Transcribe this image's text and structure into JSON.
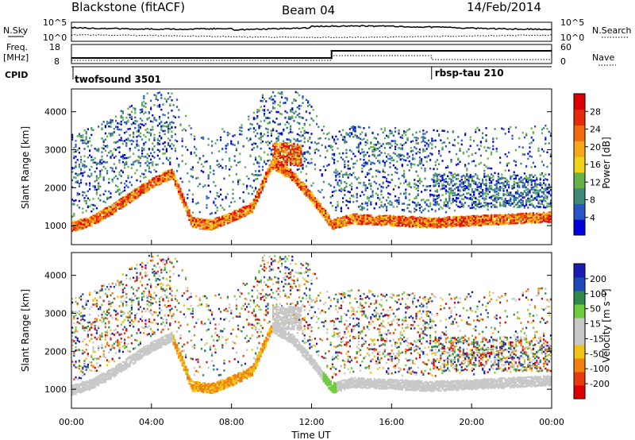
{
  "header": {
    "station": "Blackstone (fitACF)",
    "beam": "Beam 04",
    "date": "14/Feb/2014"
  },
  "strip_labels": {
    "nsky": "N.Sky",
    "nsearch": "N.Search",
    "freq_line1": "Freq.",
    "freq_line2": "[MHz]",
    "nave": "Nave",
    "cpid": "CPID"
  },
  "nsky_ticks": [
    "10^5",
    "10^0"
  ],
  "nsearch_ticks": [
    "10^5",
    "10^0"
  ],
  "freq_ticks": [
    "18",
    "8"
  ],
  "nave_ticks": [
    "60",
    "0"
  ],
  "cpid_segments": [
    {
      "label": "twofsound 3501",
      "start_hour": 0,
      "end_hour": 18
    },
    {
      "label": "rbsp-tau 210",
      "start_hour": 18,
      "end_hour": 24
    }
  ],
  "colors": {
    "power_scale": [
      "#0000dd",
      "#2a55c8",
      "#3f8a78",
      "#66b24a",
      "#f2d21c",
      "#f6a81a",
      "#f06a10",
      "#e62a0c",
      "#dd0000"
    ],
    "velocity_scale": [
      "#1a1ab4",
      "#1e4ab8",
      "#2d8a4a",
      "#6ccc3a",
      "#c8c8c8",
      "#c8c8c8",
      "#f2c214",
      "#f08010",
      "#e83a0c",
      "#dd0000"
    ]
  },
  "chart_data": [
    {
      "type": "heatmap",
      "name": "power",
      "title": "",
      "xlabel": "",
      "ylabel": "Slant Range [km]",
      "xlim": [
        0,
        24
      ],
      "ylim": [
        500,
        4600
      ],
      "x_ticks": [],
      "y_ticks": [
        "1000",
        "2000",
        "3000",
        "4000"
      ],
      "colorbar": {
        "label": "Power [dB]",
        "ticks": [
          "4",
          "8",
          "12",
          "16",
          "20",
          "24",
          "28"
        ],
        "range": [
          0,
          30
        ]
      },
      "main_echo_band": {
        "hours": [
          0,
          1,
          2,
          3,
          4,
          5,
          6,
          7,
          8,
          9,
          10,
          11,
          12,
          13,
          14,
          16,
          18,
          20,
          22,
          24
        ],
        "range_km": [
          950,
          1100,
          1400,
          1750,
          2100,
          2350,
          1050,
          1000,
          1200,
          1450,
          2600,
          2300,
          1700,
          1000,
          1150,
          1100,
          1050,
          1100,
          1150,
          1200
        ]
      }
    },
    {
      "type": "heatmap",
      "name": "velocity",
      "title": "",
      "xlabel": "Time UT",
      "ylabel": "Slant Range [km]",
      "xlim": [
        0,
        24
      ],
      "ylim": [
        500,
        4600
      ],
      "x_ticks": [
        "00:00",
        "04:00",
        "08:00",
        "12:00",
        "16:00",
        "20:00",
        "00:00"
      ],
      "y_ticks": [
        "1000",
        "2000",
        "3000",
        "4000"
      ],
      "colorbar": {
        "label": "Velocity [m s⁻¹]",
        "ticks": [
          "200",
          "100",
          "50",
          "15",
          "-15",
          "-50",
          "-100",
          "-200"
        ],
        "range": [
          -250,
          250
        ]
      }
    }
  ]
}
